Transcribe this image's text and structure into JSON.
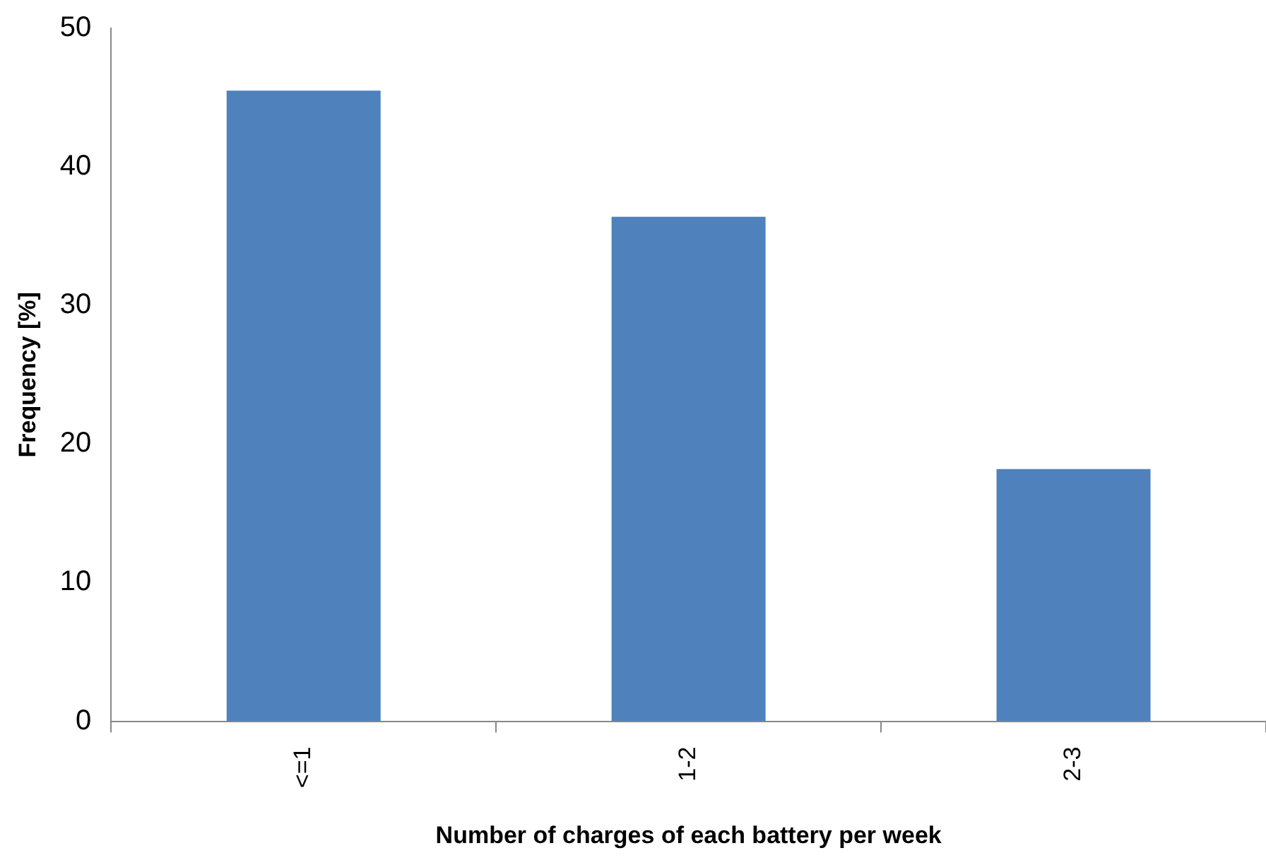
{
  "chart_data": {
    "type": "bar",
    "xlabel": "Number of charges of each battery per week",
    "ylabel": "Frequency [%]",
    "categories": [
      "<=1",
      "1-2",
      "2-3"
    ],
    "values": [
      45.5,
      36.4,
      18.2
    ],
    "color": "#4f81bd",
    "ylim": [
      0,
      50
    ],
    "yticks": [
      0,
      10,
      20,
      30,
      40,
      50
    ],
    "grid": false,
    "legend": false
  }
}
